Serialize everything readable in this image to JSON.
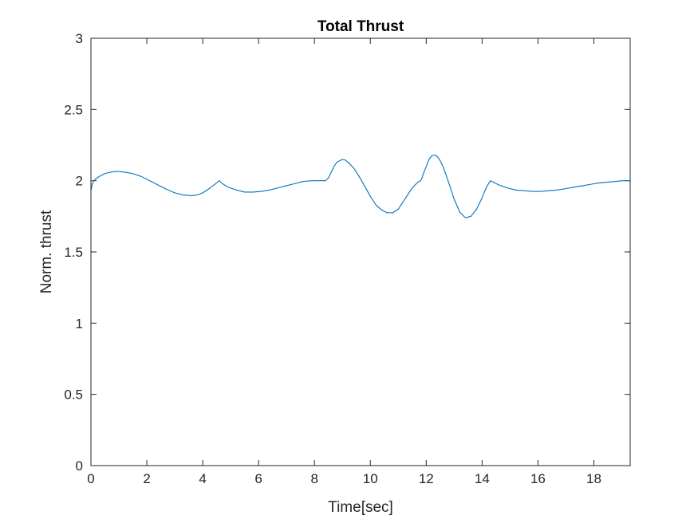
{
  "chart_data": {
    "type": "line",
    "title": "Total Thrust",
    "xlabel": "Time[sec]",
    "ylabel": "Norm. thrust",
    "xlim": [
      0,
      19.3
    ],
    "ylim": [
      0,
      3
    ],
    "xticks": [
      0,
      2,
      4,
      6,
      8,
      10,
      12,
      14,
      16,
      18
    ],
    "yticks": [
      0,
      0.5,
      1,
      1.5,
      2,
      2.5,
      3
    ],
    "xtick_labels": [
      "0",
      "2",
      "4",
      "6",
      "8",
      "10",
      "12",
      "14",
      "16",
      "18"
    ],
    "ytick_labels": [
      "0",
      "0.5",
      "1",
      "1.5",
      "2",
      "2.5",
      "3"
    ],
    "grid": false,
    "box": true,
    "series": [
      {
        "color": "#0072BD",
        "x": [
          0,
          0.05,
          0.15,
          0.3,
          0.5,
          0.7,
          0.9,
          1.0,
          1.2,
          1.5,
          1.8,
          2.1,
          2.4,
          2.7,
          3.0,
          3.3,
          3.6,
          3.8,
          4.0,
          4.2,
          4.4,
          4.6,
          4.7,
          4.9,
          5.2,
          5.5,
          5.8,
          6.1,
          6.4,
          6.7,
          7.0,
          7.3,
          7.6,
          7.9,
          8.1,
          8.3,
          8.4,
          8.5,
          8.6,
          8.7,
          8.8,
          9.0,
          9.1,
          9.2,
          9.4,
          9.6,
          9.8,
          10.0,
          10.2,
          10.4,
          10.6,
          10.8,
          11.0,
          11.1,
          11.3,
          11.5,
          11.7,
          11.8,
          11.85,
          11.9,
          12.0,
          12.1,
          12.2,
          12.3,
          12.4,
          12.5,
          12.6,
          12.8,
          13.0,
          13.2,
          13.4,
          13.6,
          13.8,
          13.9,
          14.0,
          14.1,
          14.2,
          14.3,
          14.35,
          14.4,
          14.6,
          14.9,
          15.2,
          15.5,
          15.8,
          16.1,
          16.4,
          16.7,
          17.0,
          17.3,
          17.6,
          17.9,
          18.2,
          18.5,
          18.8,
          19.0,
          19.3
        ],
        "y": [
          1.93,
          1.98,
          2.01,
          2.03,
          2.05,
          2.06,
          2.065,
          2.065,
          2.06,
          2.05,
          2.03,
          2.0,
          1.97,
          1.94,
          1.915,
          1.9,
          1.895,
          1.9,
          1.915,
          1.94,
          1.97,
          2.0,
          1.98,
          1.955,
          1.935,
          1.92,
          1.92,
          1.925,
          1.935,
          1.95,
          1.965,
          1.98,
          1.995,
          2.0,
          2.0,
          2.0,
          2.0,
          2.02,
          2.06,
          2.1,
          2.13,
          2.15,
          2.145,
          2.13,
          2.09,
          2.03,
          1.96,
          1.89,
          1.83,
          1.795,
          1.775,
          1.775,
          1.8,
          1.83,
          1.89,
          1.95,
          1.99,
          2.0,
          2.02,
          2.05,
          2.1,
          2.15,
          2.175,
          2.18,
          2.17,
          2.14,
          2.1,
          1.99,
          1.87,
          1.78,
          1.74,
          1.75,
          1.8,
          1.84,
          1.88,
          1.93,
          1.97,
          2.0,
          1.995,
          1.99,
          1.97,
          1.95,
          1.935,
          1.93,
          1.925,
          1.925,
          1.93,
          1.935,
          1.945,
          1.955,
          1.965,
          1.975,
          1.985,
          1.99,
          1.995,
          2.0,
          2.0
        ]
      }
    ]
  }
}
